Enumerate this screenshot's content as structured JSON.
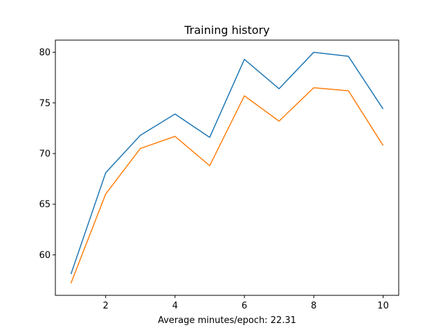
{
  "chart_data": {
    "type": "line",
    "title": "Training history",
    "xlabel": "Average minutes/epoch: 22.31",
    "ylabel": "",
    "x": [
      1,
      2,
      3,
      4,
      5,
      6,
      7,
      8,
      9,
      10
    ],
    "xlim": [
      0.55,
      10.45
    ],
    "ylim": [
      56.0,
      81.2
    ],
    "xticks": [
      2,
      4,
      6,
      8,
      10
    ],
    "yticks": [
      60,
      65,
      70,
      75,
      80
    ],
    "grid": false,
    "series": [
      {
        "color": "#1f77b4",
        "values": [
          58.1,
          68.1,
          71.8,
          73.9,
          71.6,
          79.3,
          76.4,
          80.0,
          79.6,
          74.4
        ]
      },
      {
        "color": "#ff7f0e",
        "values": [
          57.2,
          66.0,
          70.5,
          71.7,
          68.8,
          75.7,
          73.2,
          76.5,
          76.2,
          70.8
        ]
      }
    ]
  }
}
